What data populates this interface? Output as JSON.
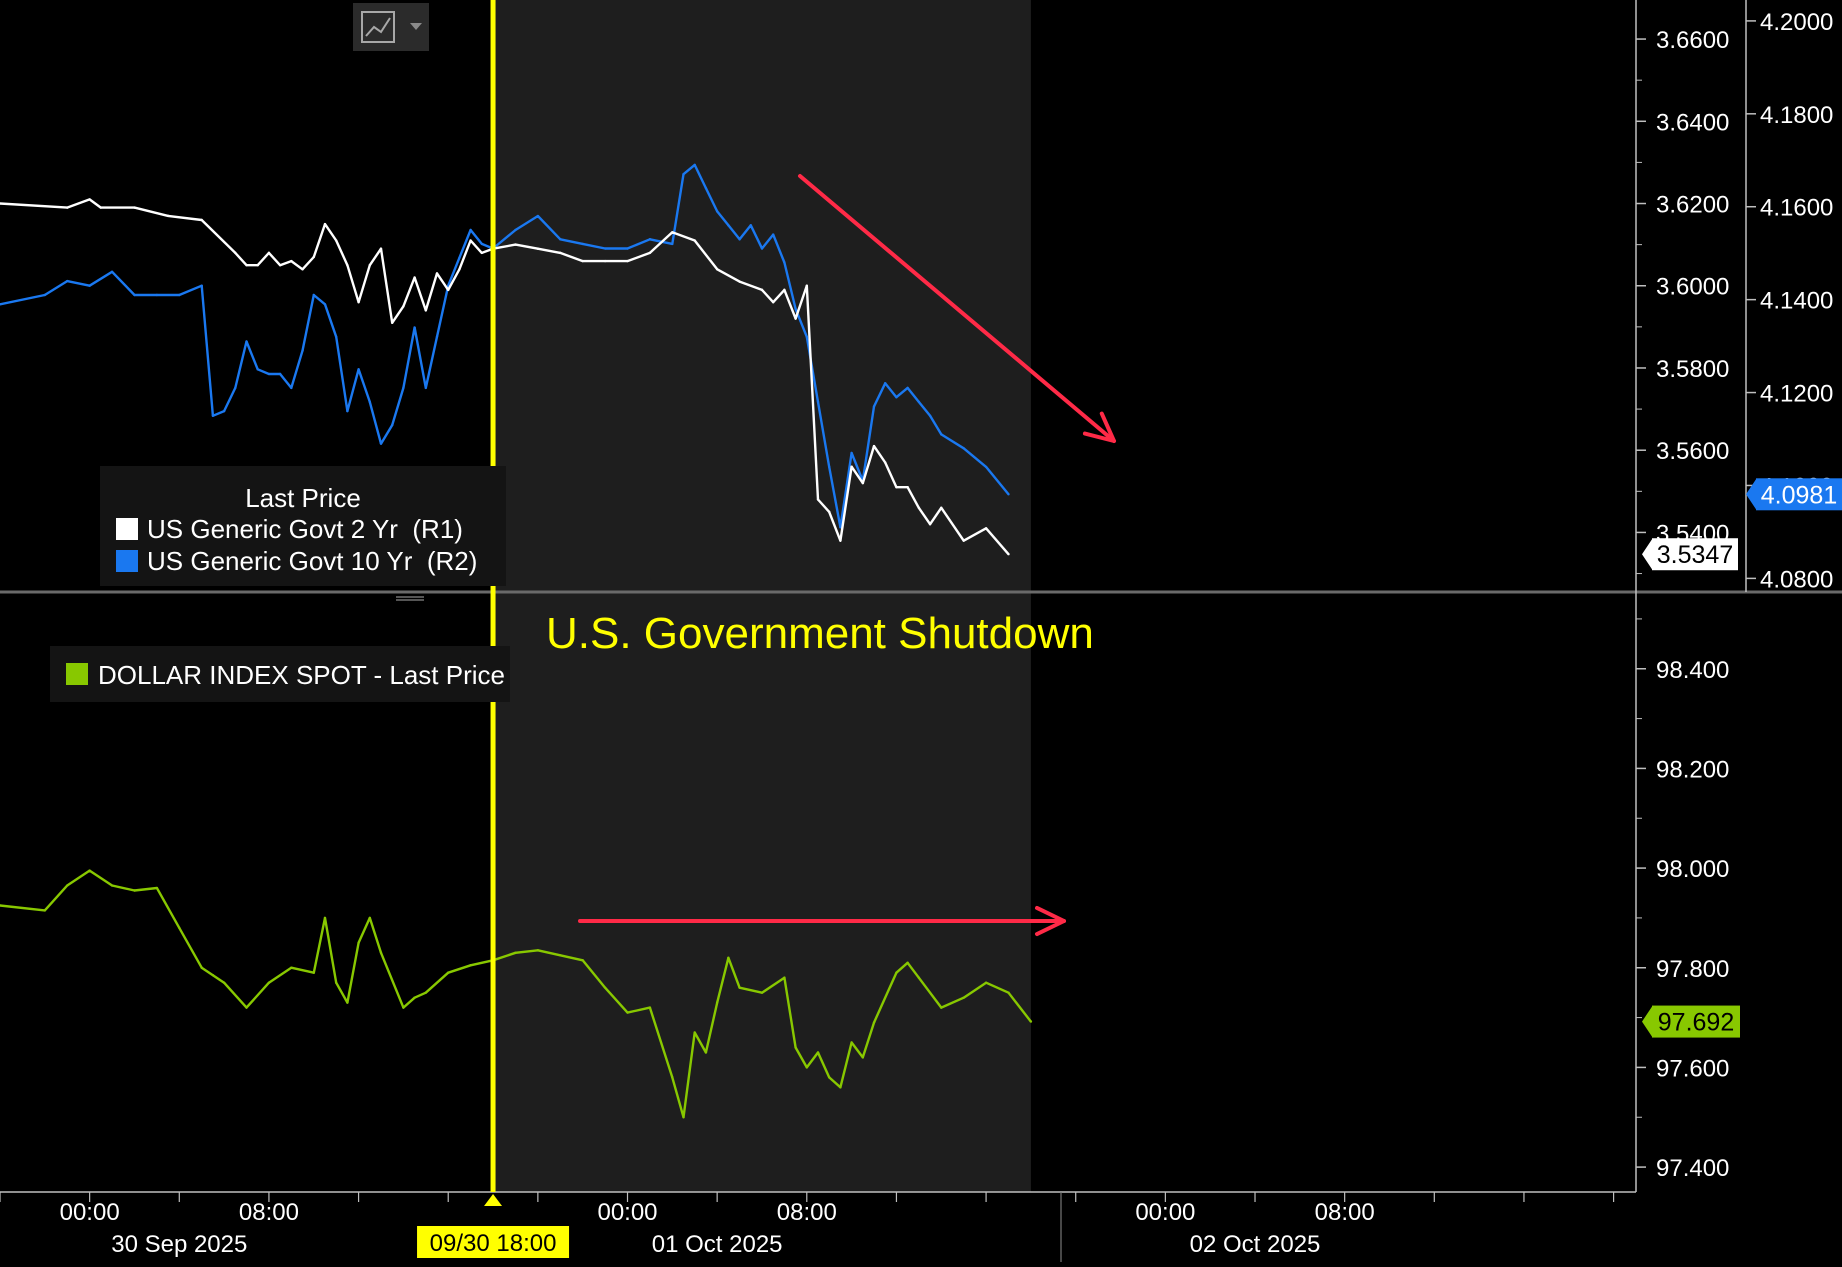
{
  "colors": {
    "background": "#000000",
    "shade": "#1e1e1e",
    "event_line": "#ffff00",
    "us2y": "#ffffff",
    "us10y": "#1a78f0",
    "dxy": "#88c800",
    "arrow": "#ff2a47",
    "axis": "#bfbfbf"
  },
  "toolbar": {
    "chart_type_icon": "line-chart-icon",
    "dropdown_icon": "chevron-down-icon"
  },
  "annotation": {
    "event_label": "U.S. Government Shutdown",
    "event_time_label": "09/30 18:00"
  },
  "legend_top": {
    "title": "Last Price",
    "items": [
      {
        "label": "US Generic Govt 2 Yr  (R1)",
        "color": "#ffffff"
      },
      {
        "label": "US Generic Govt 10 Yr  (R2)",
        "color": "#1a78f0"
      }
    ]
  },
  "legend_bottom": {
    "label": "DOLLAR INDEX SPOT - Last Price",
    "color": "#88c800"
  },
  "chart_data": [
    {
      "type": "line",
      "x_range": [
        "2025-09-29T20:00",
        "2025-10-02T21:00"
      ],
      "shaded_region": [
        "2025-09-30T18:00",
        "2025-10-01T18:00"
      ],
      "event_marker": "2025-09-30T18:00",
      "y_axes": {
        "R1": {
          "ticks": [
            "3.5400",
            "3.5600",
            "3.5800",
            "3.6000",
            "3.6200",
            "3.6400",
            "3.6600"
          ],
          "range": [
            3.526,
            3.6695
          ]
        },
        "R2": {
          "ticks": [
            "4.0800",
            "4.1000",
            "4.1200",
            "4.1400",
            "4.1600",
            "4.1800",
            "4.2000"
          ],
          "range": [
            4.0775,
            4.2045
          ]
        }
      },
      "series": [
        {
          "name": "US Generic Govt 2 Yr  (R1)",
          "axis": "R1",
          "last_value": "3.5347",
          "points": [
            [
              "2025-09-29T20:00",
              3.62
            ],
            [
              "2025-09-29T23:00",
              3.619
            ],
            [
              "2025-09-30T00:00",
              3.621
            ],
            [
              "2025-09-30T00:30",
              3.619
            ],
            [
              "2025-09-30T02:00",
              3.619
            ],
            [
              "2025-09-30T03:30",
              3.617
            ],
            [
              "2025-09-30T05:00",
              3.616
            ],
            [
              "2025-09-30T06:30",
              3.608
            ],
            [
              "2025-09-30T07:00",
              3.605
            ],
            [
              "2025-09-30T07:30",
              3.605
            ],
            [
              "2025-09-30T08:00",
              3.608
            ],
            [
              "2025-09-30T08:30",
              3.605
            ],
            [
              "2025-09-30T09:00",
              3.606
            ],
            [
              "2025-09-30T09:30",
              3.604
            ],
            [
              "2025-09-30T10:00",
              3.607
            ],
            [
              "2025-09-30T10:30",
              3.615
            ],
            [
              "2025-09-30T11:00",
              3.611
            ],
            [
              "2025-09-30T11:30",
              3.605
            ],
            [
              "2025-09-30T12:00",
              3.596
            ],
            [
              "2025-09-30T12:30",
              3.605
            ],
            [
              "2025-09-30T13:00",
              3.609
            ],
            [
              "2025-09-30T13:30",
              3.591
            ],
            [
              "2025-09-30T14:00",
              3.595
            ],
            [
              "2025-09-30T14:30",
              3.602
            ],
            [
              "2025-09-30T15:00",
              3.594
            ],
            [
              "2025-09-30T15:30",
              3.603
            ],
            [
              "2025-09-30T16:00",
              3.599
            ],
            [
              "2025-09-30T16:30",
              3.604
            ],
            [
              "2025-09-30T17:00",
              3.611
            ],
            [
              "2025-09-30T17:30",
              3.608
            ],
            [
              "2025-09-30T18:00",
              3.609
            ],
            [
              "2025-09-30T19:00",
              3.61
            ],
            [
              "2025-09-30T20:00",
              3.609
            ],
            [
              "2025-09-30T21:00",
              3.608
            ],
            [
              "2025-09-30T22:00",
              3.606
            ],
            [
              "2025-09-30T23:00",
              3.606
            ],
            [
              "2025-10-01T00:00",
              3.606
            ],
            [
              "2025-10-01T01:00",
              3.608
            ],
            [
              "2025-10-01T02:00",
              3.613
            ],
            [
              "2025-10-01T03:00",
              3.611
            ],
            [
              "2025-10-01T04:00",
              3.604
            ],
            [
              "2025-10-01T05:00",
              3.601
            ],
            [
              "2025-10-01T06:00",
              3.599
            ],
            [
              "2025-10-01T06:30",
              3.596
            ],
            [
              "2025-10-01T07:00",
              3.599
            ],
            [
              "2025-10-01T07:30",
              3.592
            ],
            [
              "2025-10-01T08:00",
              3.6
            ],
            [
              "2025-10-01T08:30",
              3.548
            ],
            [
              "2025-10-01T09:00",
              3.545
            ],
            [
              "2025-10-01T09:30",
              3.538
            ],
            [
              "2025-10-01T10:00",
              3.556
            ],
            [
              "2025-10-01T10:30",
              3.552
            ],
            [
              "2025-10-01T11:00",
              3.561
            ],
            [
              "2025-10-01T11:30",
              3.557
            ],
            [
              "2025-10-01T12:00",
              3.551
            ],
            [
              "2025-10-01T12:30",
              3.551
            ],
            [
              "2025-10-01T13:00",
              3.546
            ],
            [
              "2025-10-01T13:30",
              3.542
            ],
            [
              "2025-10-01T14:00",
              3.546
            ],
            [
              "2025-10-01T15:00",
              3.538
            ],
            [
              "2025-10-01T16:00",
              3.541
            ],
            [
              "2025-10-01T17:00",
              3.5347
            ]
          ]
        },
        {
          "name": "US Generic Govt 10 Yr  (R2)",
          "axis": "R2",
          "last_value": "4.0981",
          "points": [
            [
              "2025-09-29T20:00",
              4.139
            ],
            [
              "2025-09-29T22:00",
              4.141
            ],
            [
              "2025-09-29T23:00",
              4.144
            ],
            [
              "2025-09-30T00:00",
              4.143
            ],
            [
              "2025-09-30T01:00",
              4.146
            ],
            [
              "2025-09-30T02:00",
              4.141
            ],
            [
              "2025-09-30T03:00",
              4.141
            ],
            [
              "2025-09-30T04:00",
              4.141
            ],
            [
              "2025-09-30T05:00",
              4.143
            ],
            [
              "2025-09-30T05:30",
              4.115
            ],
            [
              "2025-09-30T06:00",
              4.116
            ],
            [
              "2025-09-30T06:30",
              4.121
            ],
            [
              "2025-09-30T07:00",
              4.131
            ],
            [
              "2025-09-30T07:30",
              4.125
            ],
            [
              "2025-09-30T08:00",
              4.124
            ],
            [
              "2025-09-30T08:30",
              4.124
            ],
            [
              "2025-09-30T09:00",
              4.121
            ],
            [
              "2025-09-30T09:30",
              4.129
            ],
            [
              "2025-09-30T10:00",
              4.141
            ],
            [
              "2025-09-30T10:30",
              4.139
            ],
            [
              "2025-09-30T11:00",
              4.132
            ],
            [
              "2025-09-30T11:30",
              4.116
            ],
            [
              "2025-09-30T12:00",
              4.125
            ],
            [
              "2025-09-30T12:30",
              4.118
            ],
            [
              "2025-09-30T13:00",
              4.109
            ],
            [
              "2025-09-30T13:30",
              4.113
            ],
            [
              "2025-09-30T14:00",
              4.121
            ],
            [
              "2025-09-30T14:30",
              4.134
            ],
            [
              "2025-09-30T15:00",
              4.121
            ],
            [
              "2025-09-30T15:30",
              4.132
            ],
            [
              "2025-09-30T16:00",
              4.143
            ],
            [
              "2025-09-30T16:30",
              4.149
            ],
            [
              "2025-09-30T17:00",
              4.155
            ],
            [
              "2025-09-30T17:30",
              4.152
            ],
            [
              "2025-09-30T18:00",
              4.151
            ],
            [
              "2025-09-30T19:00",
              4.155
            ],
            [
              "2025-09-30T20:00",
              4.158
            ],
            [
              "2025-09-30T21:00",
              4.153
            ],
            [
              "2025-09-30T22:00",
              4.152
            ],
            [
              "2025-09-30T23:00",
              4.151
            ],
            [
              "2025-10-01T00:00",
              4.151
            ],
            [
              "2025-10-01T01:00",
              4.153
            ],
            [
              "2025-10-01T02:00",
              4.152
            ],
            [
              "2025-10-01T02:30",
              4.167
            ],
            [
              "2025-10-01T03:00",
              4.169
            ],
            [
              "2025-10-01T03:30",
              4.164
            ],
            [
              "2025-10-01T04:00",
              4.159
            ],
            [
              "2025-10-01T04:30",
              4.156
            ],
            [
              "2025-10-01T05:00",
              4.153
            ],
            [
              "2025-10-01T05:30",
              4.156
            ],
            [
              "2025-10-01T06:00",
              4.151
            ],
            [
              "2025-10-01T06:30",
              4.154
            ],
            [
              "2025-10-01T07:00",
              4.148
            ],
            [
              "2025-10-01T07:30",
              4.138
            ],
            [
              "2025-10-01T08:00",
              4.132
            ],
            [
              "2025-10-01T08:30",
              4.118
            ],
            [
              "2025-10-01T09:00",
              4.104
            ],
            [
              "2025-10-01T09:30",
              4.091
            ],
            [
              "2025-10-01T10:00",
              4.107
            ],
            [
              "2025-10-01T10:30",
              4.101
            ],
            [
              "2025-10-01T11:00",
              4.117
            ],
            [
              "2025-10-01T11:30",
              4.122
            ],
            [
              "2025-10-01T12:00",
              4.119
            ],
            [
              "2025-10-01T12:30",
              4.121
            ],
            [
              "2025-10-01T13:00",
              4.118
            ],
            [
              "2025-10-01T13:30",
              4.115
            ],
            [
              "2025-10-01T14:00",
              4.111
            ],
            [
              "2025-10-01T15:00",
              4.108
            ],
            [
              "2025-10-01T16:00",
              4.104
            ],
            [
              "2025-10-01T17:00",
              4.0981
            ]
          ]
        }
      ]
    },
    {
      "type": "line",
      "x_range": [
        "2025-09-29T20:00",
        "2025-10-02T21:00"
      ],
      "y_axis": {
        "ticks": [
          "97.400",
          "97.600",
          "97.800",
          "98.000",
          "98.200",
          "98.400"
        ],
        "range": [
          97.35,
          98.55
        ]
      },
      "series": [
        {
          "name": "DOLLAR INDEX SPOT - Last Price",
          "last_value": "97.692",
          "points": [
            [
              "2025-09-29T20:00",
              97.925
            ],
            [
              "2025-09-29T22:00",
              97.915
            ],
            [
              "2025-09-29T23:00",
              97.965
            ],
            [
              "2025-09-30T00:00",
              97.995
            ],
            [
              "2025-09-30T01:00",
              97.965
            ],
            [
              "2025-09-30T02:00",
              97.955
            ],
            [
              "2025-09-30T03:00",
              97.96
            ],
            [
              "2025-09-30T04:00",
              97.88
            ],
            [
              "2025-09-30T05:00",
              97.8
            ],
            [
              "2025-09-30T05:30",
              97.785
            ],
            [
              "2025-09-30T06:00",
              97.77
            ],
            [
              "2025-09-30T07:00",
              97.72
            ],
            [
              "2025-09-30T08:00",
              97.77
            ],
            [
              "2025-09-30T09:00",
              97.8
            ],
            [
              "2025-09-30T10:00",
              97.79
            ],
            [
              "2025-09-30T10:30",
              97.9
            ],
            [
              "2025-09-30T11:00",
              97.77
            ],
            [
              "2025-09-30T11:30",
              97.73
            ],
            [
              "2025-09-30T12:00",
              97.85
            ],
            [
              "2025-09-30T12:30",
              97.9
            ],
            [
              "2025-09-30T13:00",
              97.83
            ],
            [
              "2025-09-30T14:00",
              97.72
            ],
            [
              "2025-09-30T14:30",
              97.74
            ],
            [
              "2025-09-30T15:00",
              97.75
            ],
            [
              "2025-09-30T16:00",
              97.79
            ],
            [
              "2025-09-30T17:00",
              97.805
            ],
            [
              "2025-09-30T18:00",
              97.815
            ],
            [
              "2025-09-30T19:00",
              97.83
            ],
            [
              "2025-09-30T20:00",
              97.835
            ],
            [
              "2025-09-30T21:00",
              97.825
            ],
            [
              "2025-09-30T22:00",
              97.815
            ],
            [
              "2025-09-30T23:00",
              97.76
            ],
            [
              "2025-10-01T00:00",
              97.71
            ],
            [
              "2025-10-01T01:00",
              97.72
            ],
            [
              "2025-10-01T02:00",
              97.58
            ],
            [
              "2025-10-01T02:30",
              97.5
            ],
            [
              "2025-10-01T03:00",
              97.67
            ],
            [
              "2025-10-01T03:30",
              97.63
            ],
            [
              "2025-10-01T04:00",
              97.73
            ],
            [
              "2025-10-01T04:30",
              97.82
            ],
            [
              "2025-10-01T05:00",
              97.76
            ],
            [
              "2025-10-01T06:00",
              97.75
            ],
            [
              "2025-10-01T07:00",
              97.78
            ],
            [
              "2025-10-01T07:30",
              97.64
            ],
            [
              "2025-10-01T08:00",
              97.6
            ],
            [
              "2025-10-01T08:30",
              97.63
            ],
            [
              "2025-10-01T09:00",
              97.58
            ],
            [
              "2025-10-01T09:30",
              97.56
            ],
            [
              "2025-10-01T10:00",
              97.65
            ],
            [
              "2025-10-01T10:30",
              97.62
            ],
            [
              "2025-10-01T11:00",
              97.69
            ],
            [
              "2025-10-01T12:00",
              97.79
            ],
            [
              "2025-10-01T12:30",
              97.81
            ],
            [
              "2025-10-01T13:00",
              97.78
            ],
            [
              "2025-10-01T14:00",
              97.72
            ],
            [
              "2025-10-01T15:00",
              97.74
            ],
            [
              "2025-10-01T16:00",
              97.77
            ],
            [
              "2025-10-01T17:00",
              97.75
            ],
            [
              "2025-10-01T18:00",
              97.692
            ]
          ]
        }
      ]
    }
  ],
  "x_axis": {
    "time_ticks": [
      {
        "t": "2025-09-30T00:00",
        "label": "00:00"
      },
      {
        "t": "2025-09-30T08:00",
        "label": "08:00"
      },
      {
        "t": "2025-10-01T00:00",
        "label": "00:00"
      },
      {
        "t": "2025-10-01T08:00",
        "label": "08:00"
      },
      {
        "t": "2025-10-02T00:00",
        "label": "00:00"
      },
      {
        "t": "2025-10-02T08:00",
        "label": "08:00"
      }
    ],
    "date_labels": [
      {
        "t": "2025-09-30T04:00",
        "label": "30 Sep 2025"
      },
      {
        "t": "2025-10-01T04:00",
        "label": "01 Oct 2025"
      },
      {
        "t": "2025-10-02T04:00",
        "label": "02 Oct 2025"
      }
    ]
  }
}
